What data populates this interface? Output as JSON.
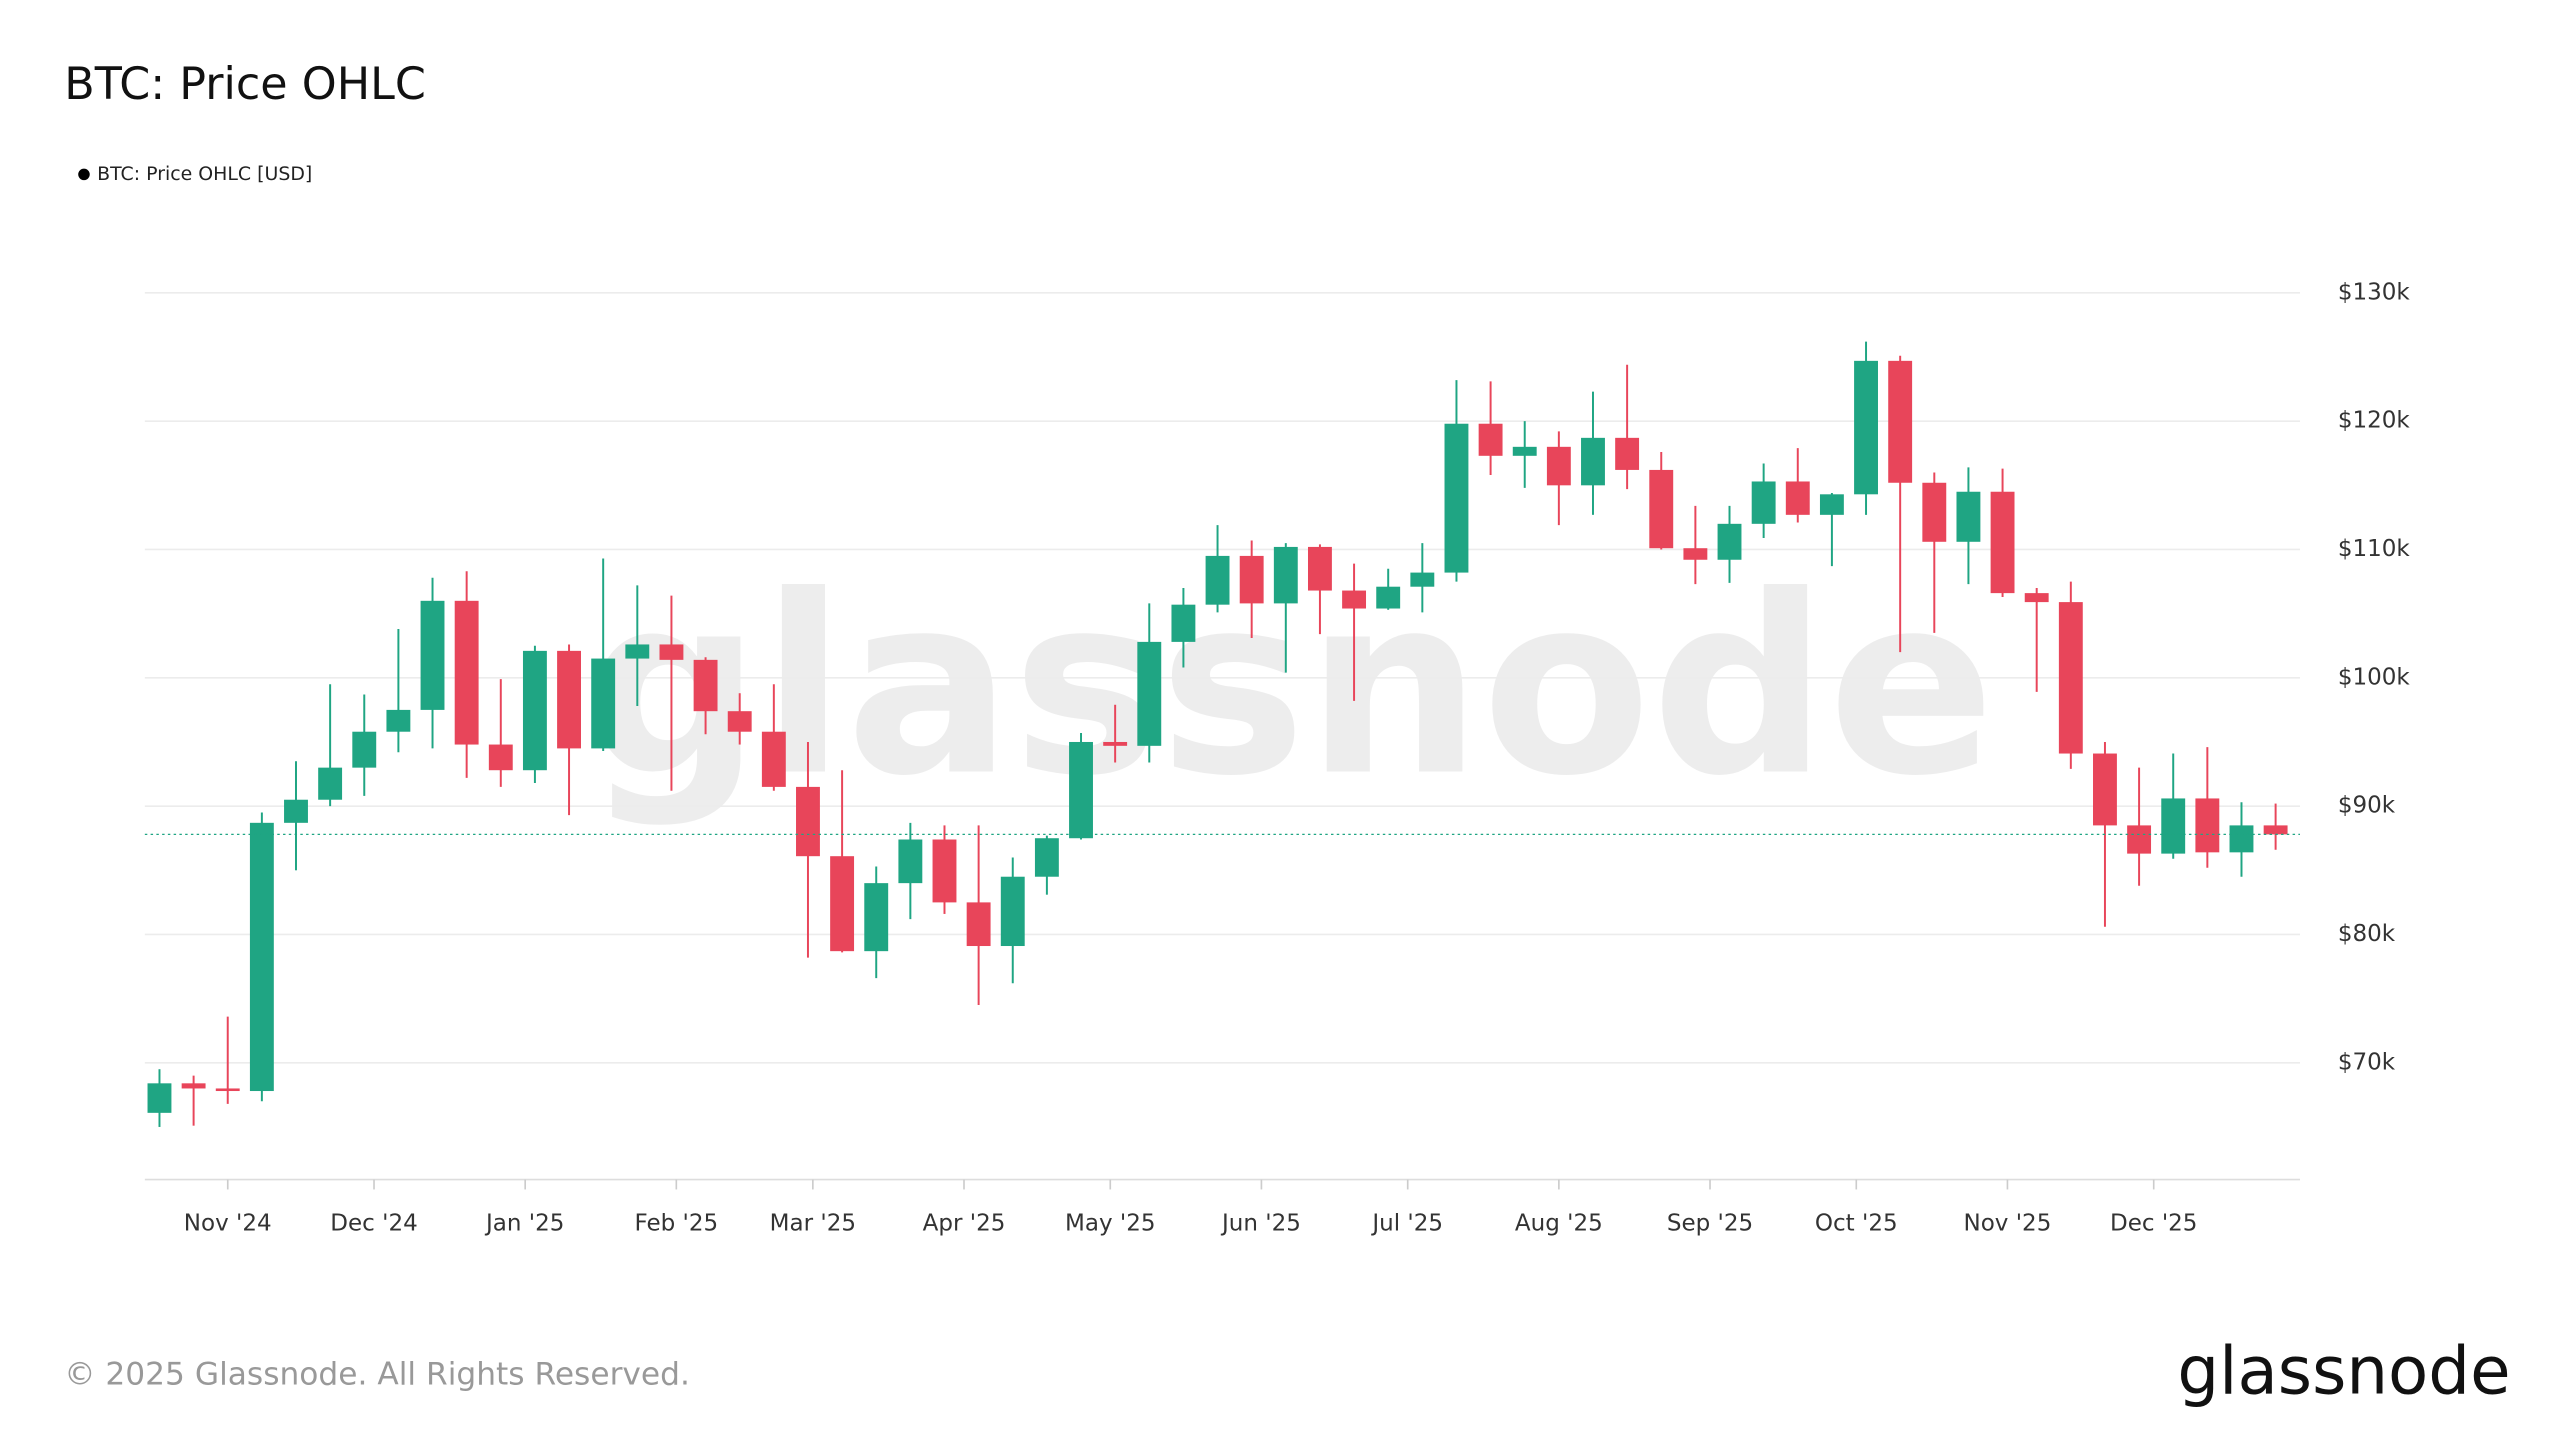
{
  "chart_data": {
    "type": "candlestick",
    "title": "BTC: Price OHLC",
    "xlim": [
      0,
      442
    ],
    "xticks": [
      {
        "value": 17,
        "label": "Nov '24"
      },
      {
        "value": 47,
        "label": "Dec '24"
      },
      {
        "value": 78,
        "label": "Jan '25"
      },
      {
        "value": 109,
        "label": "Feb '25"
      },
      {
        "value": 137,
        "label": "Mar '25"
      },
      {
        "value": 168,
        "label": "Apr '25"
      },
      {
        "value": 198,
        "label": "May '25"
      },
      {
        "value": 229,
        "label": "Jun '25"
      },
      {
        "value": 259,
        "label": "Jul '25"
      },
      {
        "value": 290,
        "label": "Aug '25"
      },
      {
        "value": 321,
        "label": "Sep '25"
      },
      {
        "value": 351,
        "label": "Oct '25"
      },
      {
        "value": 382,
        "label": "Nov '25"
      },
      {
        "value": 412,
        "label": "Dec '25"
      }
    ],
    "ylim": [
      60900,
      130000
    ],
    "yticks": [
      {
        "value": 70000,
        "label": "$70k"
      },
      {
        "value": 80000,
        "label": "$80k"
      },
      {
        "value": 90000,
        "label": "$90k"
      },
      {
        "value": 100000,
        "label": "$100k"
      },
      {
        "value": 110000,
        "label": "$110k"
      },
      {
        "value": 120000,
        "label": "$120k"
      },
      {
        "value": 130000,
        "label": "$130k"
      }
    ],
    "grid": true,
    "series": [
      {
        "name": "BTC: Price OHLC [USD]",
        "legend_color": "#000000",
        "up_color": "#1fa583",
        "down_color": "#e8455a",
        "x": [
          3,
          10,
          17,
          24,
          31,
          38,
          45,
          52,
          59,
          66,
          73,
          80,
          87,
          94,
          101,
          108,
          115,
          122,
          129,
          136,
          143,
          150,
          157,
          164,
          171,
          178,
          185,
          192,
          199,
          206,
          213,
          220,
          227,
          234,
          241,
          248,
          255,
          262,
          269,
          276,
          283,
          290,
          297,
          304,
          311,
          318,
          325,
          332,
          339,
          346,
          353,
          360,
          367,
          374,
          381,
          388,
          395,
          402,
          409,
          416,
          423,
          430,
          437
        ],
        "open": [
          66100,
          68400,
          68000,
          67800,
          88700,
          90500,
          93000,
          95800,
          97500,
          106000,
          94800,
          92800,
          102100,
          94500,
          101500,
          102600,
          101400,
          97400,
          95800,
          91500,
          86100,
          78700,
          84000,
          87400,
          82500,
          79100,
          84500,
          87500,
          95000,
          94700,
          102800,
          105700,
          109500,
          105800,
          110200,
          106800,
          105400,
          107100,
          108200,
          119800,
          117300,
          118000,
          115000,
          118700,
          116200,
          110100,
          109200,
          112000,
          115300,
          112700,
          114300,
          124700,
          115200,
          110600,
          114500,
          106600,
          105900,
          94100,
          88500,
          86300,
          90600,
          86400,
          88500
        ],
        "high": [
          69500,
          69000,
          73600,
          89500,
          93500,
          99500,
          98700,
          103800,
          107800,
          108300,
          99900,
          102500,
          102600,
          109300,
          107200,
          106400,
          101600,
          98800,
          99500,
          95000,
          92800,
          85300,
          88700,
          88500,
          88500,
          86000,
          87700,
          95700,
          97900,
          105800,
          107000,
          111900,
          110700,
          110500,
          110400,
          108900,
          108500,
          110500,
          123200,
          123100,
          120000,
          119200,
          122300,
          124400,
          117600,
          113400,
          113400,
          116700,
          117900,
          114400,
          126200,
          125100,
          116000,
          116400,
          116300,
          107000,
          107500,
          95000,
          93000,
          94100,
          94600,
          90300,
          90200
        ],
        "low": [
          65000,
          65100,
          66800,
          67000,
          85000,
          90000,
          90800,
          94200,
          94500,
          92200,
          91500,
          91800,
          89300,
          94300,
          97800,
          91200,
          95600,
          94800,
          91200,
          78200,
          78600,
          76600,
          81200,
          81600,
          74500,
          76200,
          83100,
          87400,
          93400,
          93400,
          100800,
          105100,
          103100,
          100400,
          103400,
          98200,
          105300,
          105100,
          107500,
          115800,
          114800,
          111900,
          112700,
          114700,
          110000,
          107300,
          107400,
          110900,
          112100,
          108700,
          112700,
          102000,
          103500,
          107300,
          106300,
          98900,
          92900,
          80600,
          83800,
          85900,
          85200,
          84500,
          86600
        ],
        "close": [
          68400,
          68000,
          67800,
          88700,
          90500,
          93000,
          95800,
          97500,
          106000,
          94800,
          92800,
          102100,
          94500,
          101500,
          102600,
          101400,
          97400,
          95800,
          91500,
          86100,
          78700,
          84000,
          87400,
          82500,
          79100,
          84500,
          87500,
          95000,
          94700,
          102800,
          105700,
          109500,
          105800,
          110200,
          106800,
          105400,
          107100,
          108200,
          119800,
          117300,
          118000,
          115000,
          118700,
          116200,
          110100,
          109200,
          112000,
          115300,
          112700,
          114300,
          124700,
          115200,
          110600,
          114500,
          106600,
          105900,
          94100,
          88500,
          86300,
          90600,
          86400,
          88500,
          87800
        ]
      }
    ]
  },
  "watermark": "glassnode",
  "footer": {
    "copyright": "© 2025 Glassnode. All Rights Reserved.",
    "logo": "glassnode"
  }
}
